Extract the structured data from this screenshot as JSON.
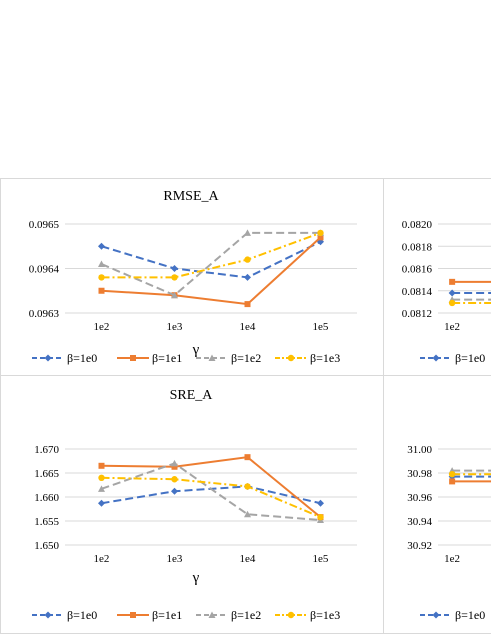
{
  "colors": {
    "s0": "#4472c4",
    "s1": "#ed7d31",
    "s2": "#a5a5a5",
    "s3": "#ffc000"
  },
  "chart_data": [
    {
      "type": "line",
      "title": "RMSE_A",
      "xlabel": "γ",
      "categories": [
        "1e2",
        "1e3",
        "1e4",
        "1e5"
      ],
      "yticks": [
        "0.0963",
        "0.0964",
        "0.0965"
      ],
      "ylim": [
        0.0963,
        0.0965
      ],
      "grid": true,
      "legend": "bottom",
      "series": [
        {
          "name": "β=1e0",
          "values": [
            0.09645,
            0.0964,
            0.09638,
            0.09646
          ]
        },
        {
          "name": "β=1e1",
          "values": [
            0.09635,
            0.09634,
            0.09632,
            0.09647
          ]
        },
        {
          "name": "β=1e2",
          "values": [
            0.09641,
            0.09634,
            0.09648,
            0.09648
          ]
        },
        {
          "name": "β=1e3",
          "values": [
            0.09638,
            0.09638,
            0.09642,
            0.09648
          ]
        }
      ]
    },
    {
      "type": "line",
      "title": "",
      "xlabel": "",
      "categories": [
        "1e2"
      ],
      "yticks": [
        "0.0812",
        "0.0814",
        "0.0816",
        "0.0818",
        "0.0820"
      ],
      "ylim": [
        0.0812,
        0.082
      ],
      "grid": true,
      "legend": "bottom",
      "series": [
        {
          "name": "β=1e0",
          "values": [
            0.08138
          ]
        },
        {
          "name": "",
          "values": [
            0.08148
          ]
        },
        {
          "name": "",
          "values": [
            0.08132
          ]
        },
        {
          "name": "",
          "values": [
            0.08129
          ]
        }
      ]
    },
    {
      "type": "line",
      "title": "SRE_A",
      "xlabel": "γ",
      "categories": [
        "1e2",
        "1e3",
        "1e4",
        "1e5"
      ],
      "yticks": [
        "1.650",
        "1.655",
        "1.660",
        "1.665",
        "1.670"
      ],
      "ylim": [
        1.65,
        1.67
      ],
      "grid": true,
      "legend": "bottom",
      "series": [
        {
          "name": "β=1e0",
          "values": [
            1.6587,
            1.6612,
            1.6622,
            1.6587
          ]
        },
        {
          "name": "β=1e1",
          "values": [
            1.6665,
            1.6663,
            1.6683,
            1.6558
          ]
        },
        {
          "name": "β=1e2",
          "values": [
            1.6617,
            1.667,
            1.6564,
            1.6552
          ]
        },
        {
          "name": "β=1e3",
          "values": [
            1.664,
            1.6637,
            1.6622,
            1.6558
          ]
        }
      ]
    },
    {
      "type": "line",
      "title": "",
      "xlabel": "",
      "categories": [
        "1e2"
      ],
      "yticks": [
        "30.92",
        "30.94",
        "30.96",
        "30.98",
        "31.00"
      ],
      "ylim": [
        30.92,
        31.0
      ],
      "grid": true,
      "legend": "bottom",
      "series": [
        {
          "name": "β=1e0",
          "values": [
            30.977
          ]
        },
        {
          "name": "",
          "values": [
            30.973
          ]
        },
        {
          "name": "",
          "values": [
            30.982
          ]
        },
        {
          "name": "",
          "values": [
            30.979
          ]
        }
      ]
    }
  ]
}
